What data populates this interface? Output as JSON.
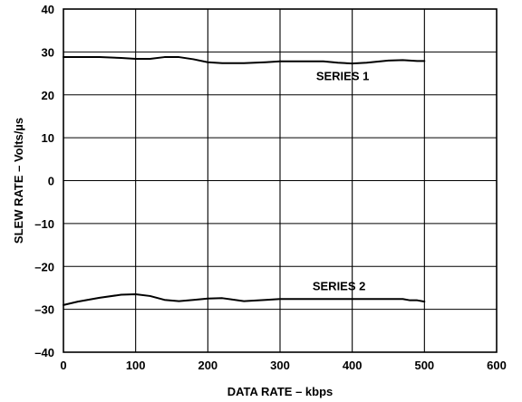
{
  "chart_data": {
    "type": "line",
    "xlabel": "DATA RATE – kbps",
    "ylabel": "SLEW RATE – Volts/µs",
    "xlim": [
      0,
      600
    ],
    "ylim": [
      -40,
      40
    ],
    "x_ticks": [
      0,
      100,
      200,
      300,
      400,
      500,
      600
    ],
    "y_ticks": [
      -40,
      -30,
      -20,
      -10,
      0,
      10,
      20,
      30,
      40
    ],
    "x_tick_labels": [
      "0",
      "100",
      "200",
      "300",
      "400",
      "500",
      "600"
    ],
    "y_tick_labels": [
      "–40",
      "–30",
      "–20",
      "–10",
      "0",
      "10",
      "20",
      "30",
      "40"
    ],
    "grid": true,
    "series": [
      {
        "name": "SERIES 1",
        "label_at": [
          350,
          24.5
        ],
        "x": [
          0,
          20,
          50,
          80,
          100,
          120,
          140,
          160,
          180,
          200,
          220,
          250,
          280,
          300,
          330,
          360,
          380,
          400,
          420,
          450,
          470,
          490,
          500
        ],
        "y": [
          28.8,
          28.8,
          28.8,
          28.6,
          28.4,
          28.4,
          28.8,
          28.8,
          28.3,
          27.6,
          27.4,
          27.4,
          27.6,
          27.8,
          27.8,
          27.8,
          27.5,
          27.3,
          27.5,
          28.0,
          28.1,
          27.9,
          27.9
        ]
      },
      {
        "name": "SERIES 2",
        "label_at": [
          345,
          -24.5
        ],
        "x": [
          0,
          20,
          50,
          80,
          100,
          120,
          140,
          160,
          180,
          200,
          220,
          250,
          280,
          300,
          330,
          360,
          380,
          400,
          420,
          450,
          470,
          480,
          490,
          500
        ],
        "y": [
          -29.0,
          -28.2,
          -27.3,
          -26.6,
          -26.5,
          -26.9,
          -27.8,
          -28.1,
          -27.8,
          -27.5,
          -27.4,
          -28.1,
          -27.8,
          -27.6,
          -27.6,
          -27.6,
          -27.6,
          -27.6,
          -27.6,
          -27.6,
          -27.6,
          -27.9,
          -27.9,
          -28.2
        ]
      }
    ],
    "style": {
      "line_color": "#000000",
      "grid_color": "#000000",
      "background": "#ffffff"
    }
  }
}
